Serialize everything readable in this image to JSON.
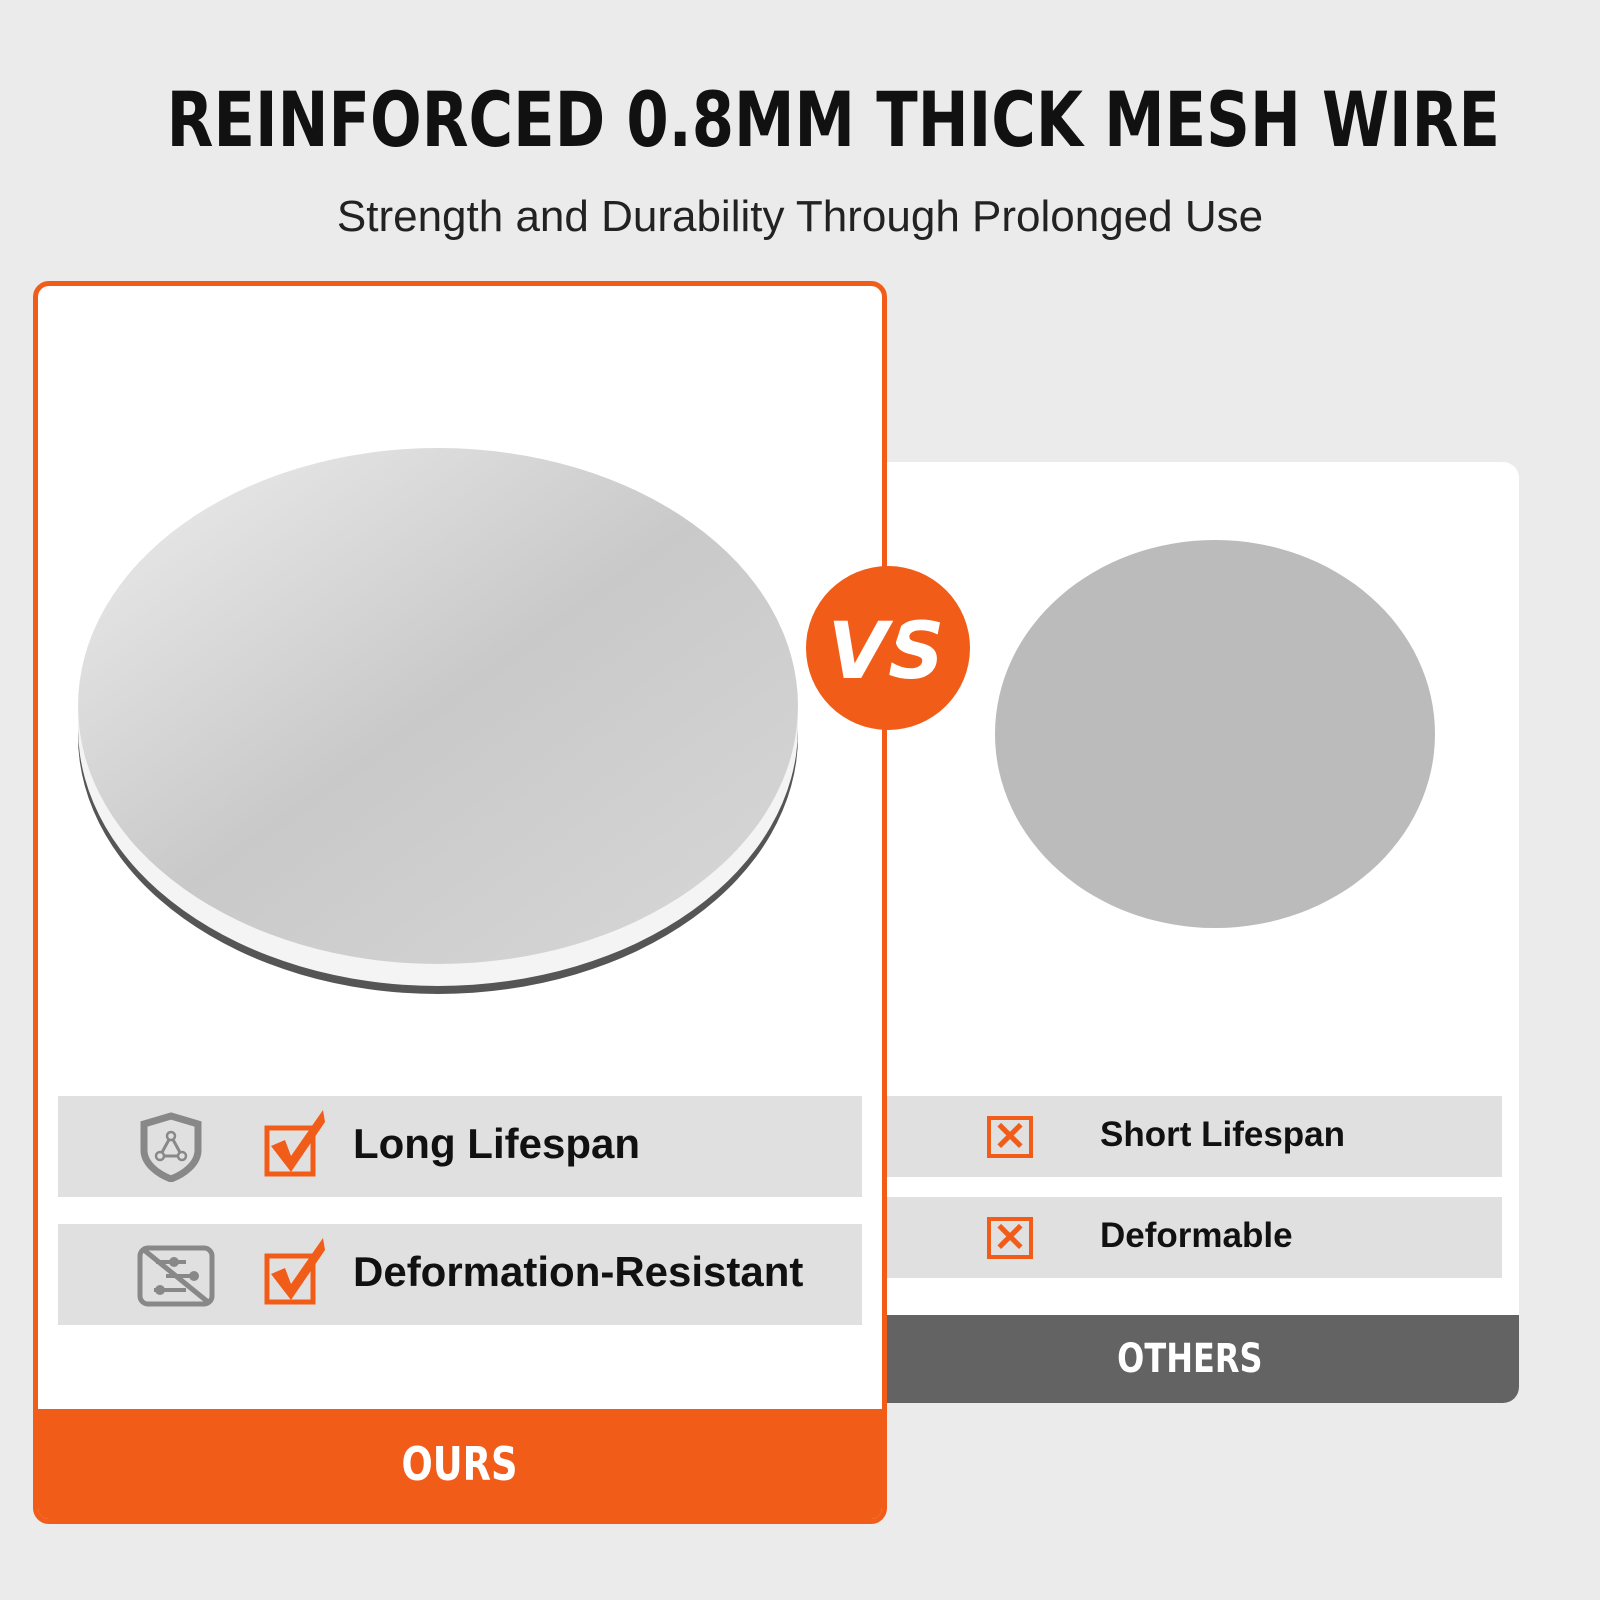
{
  "header": {
    "title": "REINFORCED 0.8MM THICK MESH WIRE",
    "subtitle": "Strength and Durability Through Prolonged Use"
  },
  "ours": {
    "label": "OURS",
    "features": [
      {
        "icon": "shield-icon",
        "label": "Long Lifespan"
      },
      {
        "icon": "deformation-resistant-icon",
        "label": "Deformation-Resistant"
      }
    ]
  },
  "others": {
    "label": "OTHERS",
    "features": [
      {
        "icon": "x-box-icon",
        "label": "Short Lifespan"
      },
      {
        "icon": "x-box-icon",
        "label": "Deformable"
      }
    ]
  },
  "vs_badge": "VS",
  "colors": {
    "accent": "#f25c19",
    "others_bar": "#636363",
    "background": "#ebebeb"
  }
}
